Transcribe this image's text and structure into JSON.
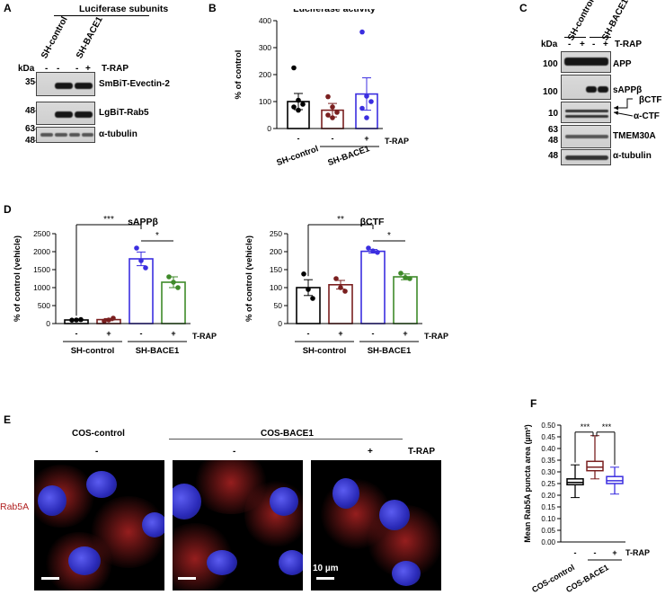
{
  "panelA": {
    "label": "A",
    "title": "Luciferase subunits",
    "col_groups": [
      "SH-control",
      "SH-BACE1"
    ],
    "kda_label": "kDa",
    "treatment_marks": [
      "-",
      "-",
      "-",
      "+"
    ],
    "treatment_label": "T-RAP",
    "markers": [
      "35-",
      "48-",
      "63-",
      "48-"
    ],
    "rows": [
      "SmBiT-Evectin-2",
      "LgBiT-Rab5",
      "α-tubulin"
    ]
  },
  "panelB": {
    "label": "B",
    "chart_data": {
      "type": "bar",
      "title": "Luciferase activity",
      "ylabel": "% of control",
      "ylim": [
        0,
        400
      ],
      "yticks": [
        "0",
        "100",
        "200",
        "300",
        "400"
      ],
      "x_marks": [
        "-",
        "-",
        "+"
      ],
      "treatment_label": "T-RAP",
      "group_labels": [
        "SH-control",
        "SH-BACE1"
      ],
      "values": [
        100,
        68,
        128
      ],
      "errors": [
        30,
        25,
        60
      ],
      "colors": [
        "#000000",
        "#7a1f1f",
        "#3b2ee0"
      ],
      "points": [
        [
          225,
          105,
          90,
          80,
          68
        ],
        [
          118,
          80,
          60,
          50,
          40
        ],
        [
          358,
          120,
          100,
          75,
          40
        ]
      ]
    }
  },
  "panelC": {
    "label": "C",
    "col_groups": [
      "SH-control",
      "SH-BACE1"
    ],
    "kda_label": "kDa",
    "treatment_marks": [
      "-",
      "+",
      "-",
      "+"
    ],
    "treatment_label": "T-RAP",
    "markers": [
      "100",
      "100",
      "10",
      "63",
      "48",
      "48"
    ],
    "rows": [
      "APP",
      "sAPPβ",
      "βCTF",
      "α-CTF",
      "TMEM30A",
      "α-tubulin"
    ]
  },
  "panelD": {
    "label": "D",
    "charts": [
      {
        "type": "bar",
        "title": "sAPPβ",
        "ylabel": "% of control (vehicle)",
        "ylim": [
          0,
          2500
        ],
        "yticks": [
          "0",
          "500",
          "1000",
          "1500",
          "2000",
          "2500"
        ],
        "x_marks": [
          "-",
          "+",
          "-",
          "+"
        ],
        "treatment_label": "T-RAP",
        "group_labels": [
          "SH-control",
          "SH-BACE1"
        ],
        "values": [
          100,
          110,
          1800,
          1150
        ],
        "errors": [
          15,
          30,
          190,
          150
        ],
        "colors": [
          "#000000",
          "#7a1f1f",
          "#3b2ee0",
          "#3f8a2a"
        ],
        "points": [
          [
            95,
            100,
            110
          ],
          [
            70,
            100,
            150
          ],
          [
            2100,
            1750,
            1550
          ],
          [
            1300,
            1150,
            1000
          ]
        ],
        "sig": [
          {
            "from": 0,
            "to": 2,
            "label": "***"
          },
          {
            "from": 2,
            "to": 3,
            "label": "*"
          }
        ]
      },
      {
        "type": "bar",
        "title": "βCTF",
        "ylabel": "% of control (vehicle)",
        "ylim": [
          0,
          250
        ],
        "yticks": [
          "0",
          "50",
          "100",
          "150",
          "200",
          "250"
        ],
        "x_marks": [
          "-",
          "+",
          "-",
          "+"
        ],
        "treatment_label": "T-RAP",
        "group_labels": [
          "SH-control",
          "SH-BACE1"
        ],
        "values": [
          100,
          108,
          201,
          130
        ],
        "errors": [
          22,
          12,
          5,
          8
        ],
        "colors": [
          "#000000",
          "#7a1f1f",
          "#3b2ee0",
          "#3f8a2a"
        ],
        "points": [
          [
            138,
            95,
            70
          ],
          [
            125,
            100,
            90
          ],
          [
            210,
            202,
            198
          ],
          [
            140,
            128,
            125
          ]
        ],
        "sig": [
          {
            "from": 0,
            "to": 2,
            "label": "**"
          },
          {
            "from": 2,
            "to": 3,
            "label": "*"
          }
        ]
      }
    ]
  },
  "panelE": {
    "label": "E",
    "groups": [
      "COS-control",
      "COS-BACE1"
    ],
    "marks": [
      "-",
      "-",
      "+"
    ],
    "treatment_label": "T-RAP",
    "stain": "Rab5A",
    "scale_text": "10 µm"
  },
  "panelF": {
    "label": "F",
    "chart_data": {
      "type": "box",
      "ylabel": "Mean Rab5A puncta area (µm²)",
      "ylim": [
        0,
        0.5
      ],
      "yticks": [
        "0.00",
        "0.05",
        "0.10",
        "0.15",
        "0.20",
        "0.25",
        "0.30",
        "0.35",
        "0.40",
        "0.45",
        "0.50"
      ],
      "x_marks": [
        "-",
        "-",
        "+"
      ],
      "treatment_label": "T-RAP",
      "group_labels": [
        "COS-control",
        "COS-BACE1"
      ],
      "colors": [
        "#000000",
        "#7a1f1f",
        "#3b2ee0"
      ],
      "boxes": [
        {
          "min": 0.19,
          "q1": 0.245,
          "median": 0.255,
          "q3": 0.27,
          "max": 0.33
        },
        {
          "min": 0.27,
          "q1": 0.305,
          "median": 0.32,
          "q3": 0.345,
          "max": 0.455
        },
        {
          "min": 0.205,
          "q1": 0.25,
          "median": 0.262,
          "q3": 0.28,
          "max": 0.32
        }
      ],
      "sig": [
        {
          "from": 0,
          "to": 1,
          "label": "***"
        },
        {
          "from": 1,
          "to": 2,
          "label": "***"
        }
      ]
    }
  }
}
